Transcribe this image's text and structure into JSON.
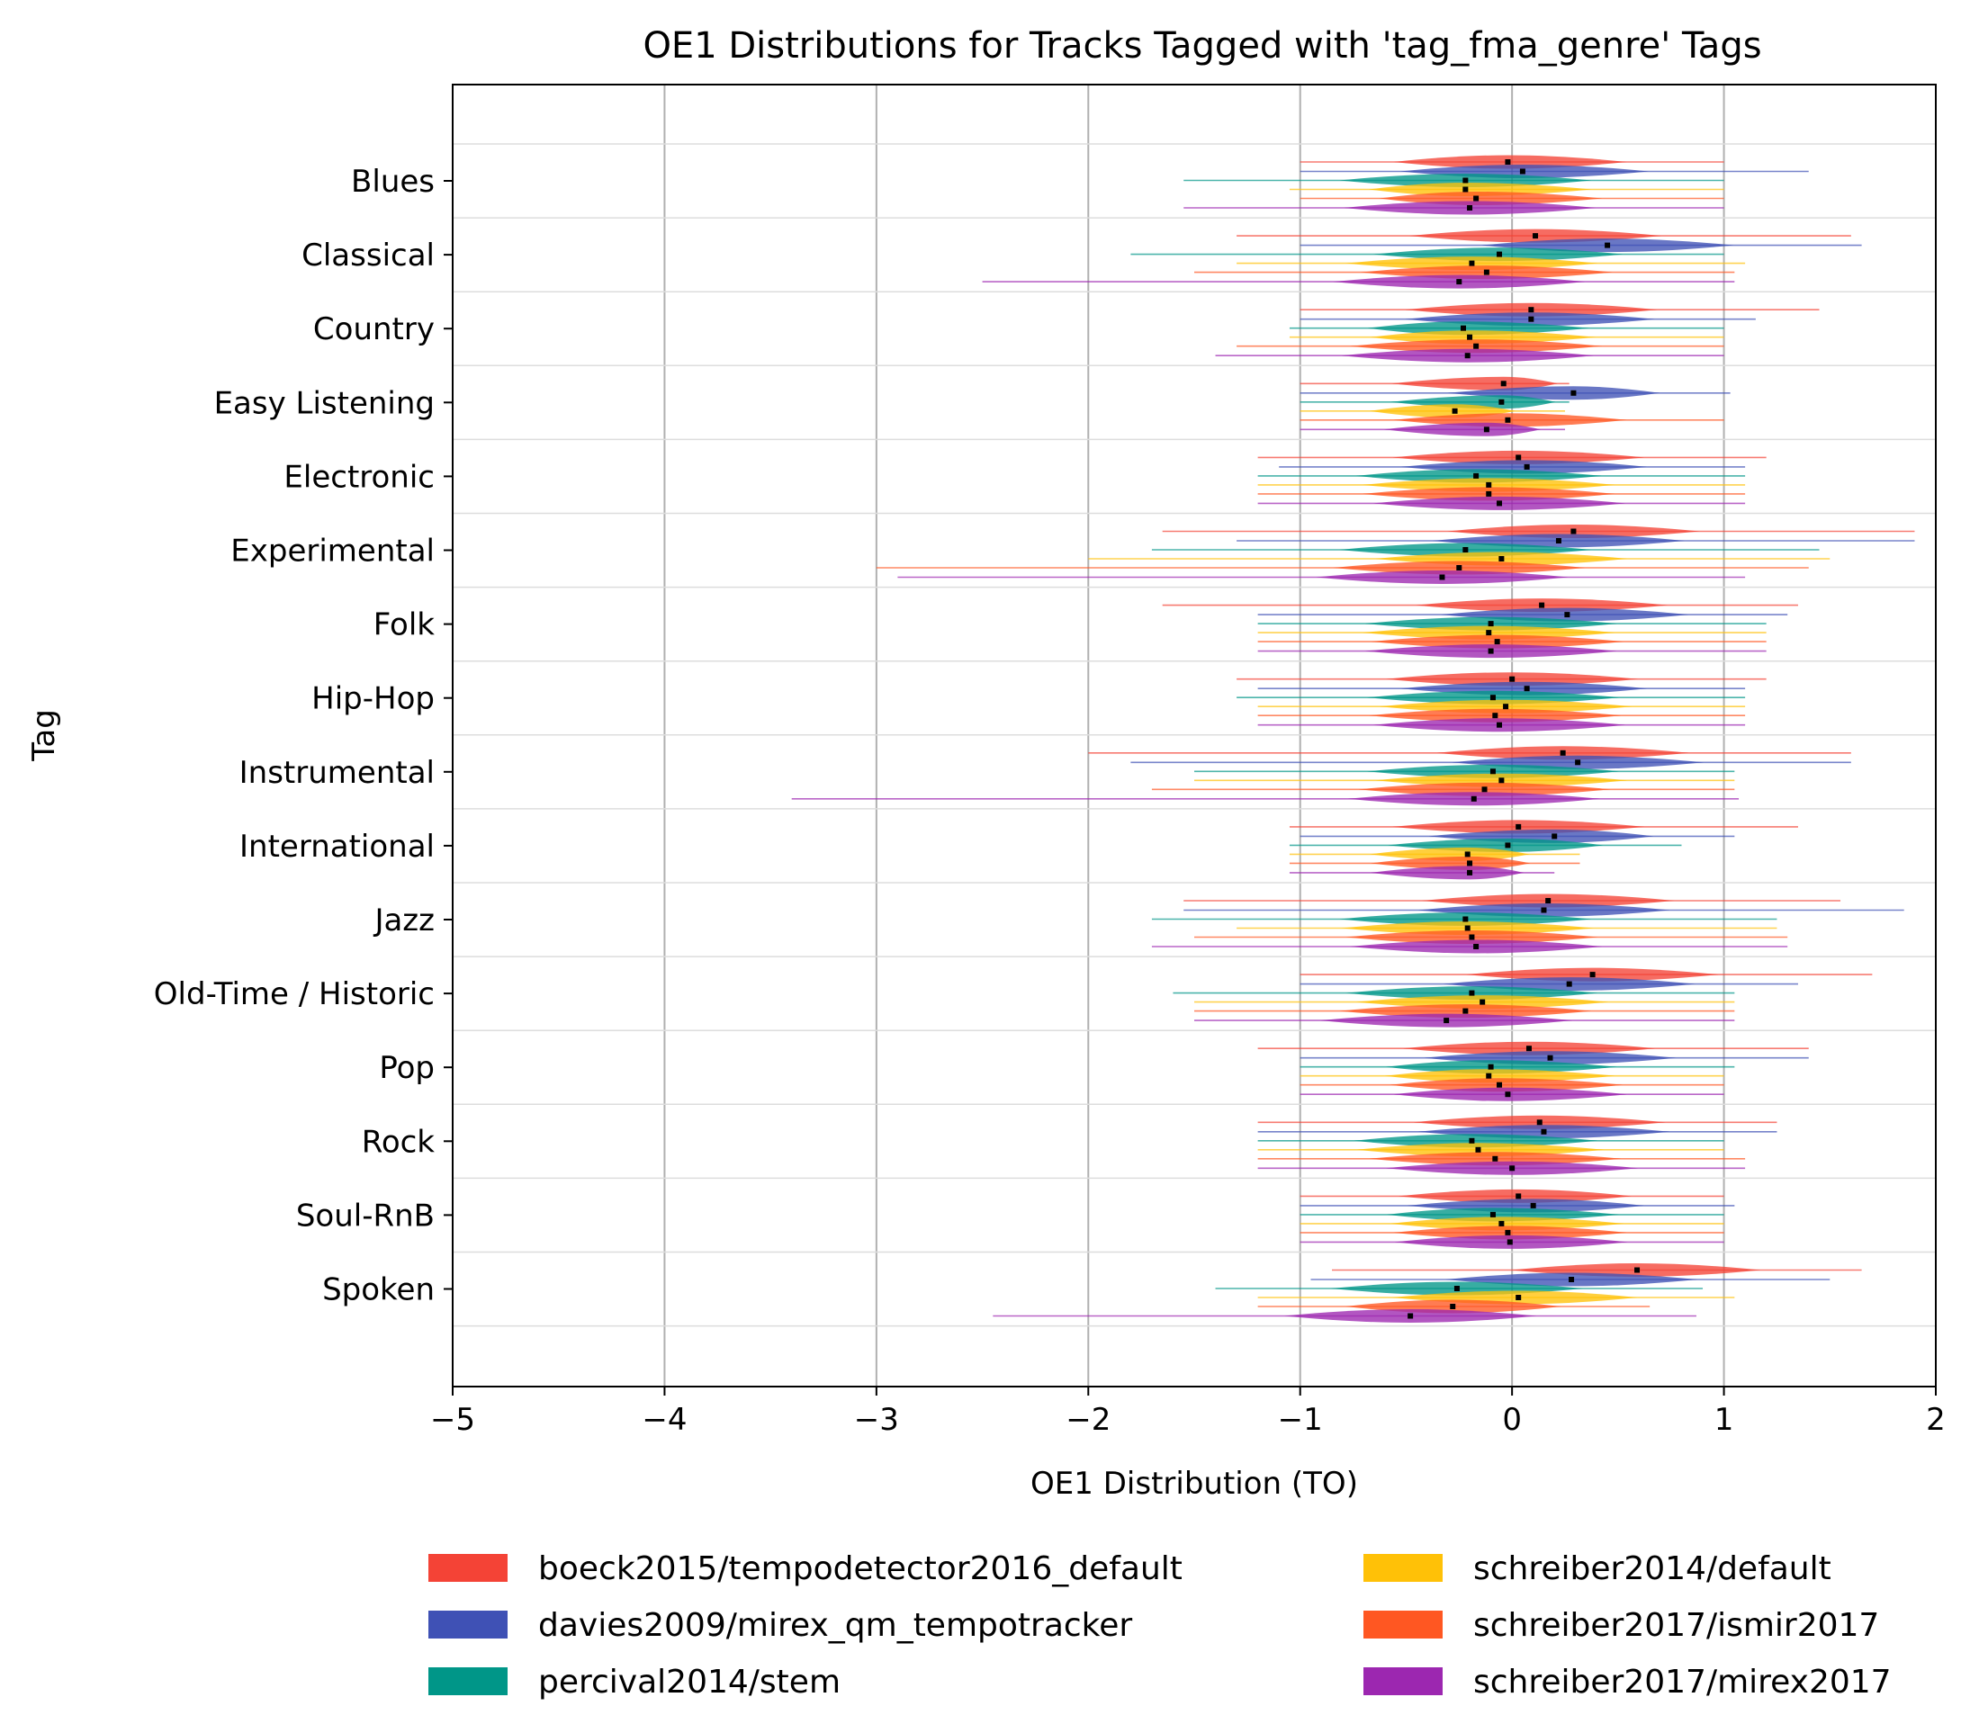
{
  "chart_data": {
    "type": "violin",
    "title": "OE1 Distributions for Tracks Tagged with 'tag_fma_genre' Tags",
    "xlabel": "OE1 Distribution (TO)",
    "ylabel": "Tag",
    "xlim": [
      -5,
      2
    ],
    "xticks": [
      -5,
      -4,
      -3,
      -2,
      -1,
      0,
      1,
      2
    ],
    "xtick_labels": [
      "−5",
      "−4",
      "−3",
      "−2",
      "−1",
      "0",
      "1",
      "2"
    ],
    "grid": "vertical",
    "legend_position": "bottom-center",
    "series": [
      {
        "name": "boeck2015/tempodetector2016_default",
        "color": "#f44336"
      },
      {
        "name": "davies2009/mirex_qm_tempotracker",
        "color": "#3f51b5"
      },
      {
        "name": "percival2014/stem",
        "color": "#009688"
      },
      {
        "name": "schreiber2014/default",
        "color": "#ffc107"
      },
      {
        "name": "schreiber2017/ismir2017",
        "color": "#ff5722"
      },
      {
        "name": "schreiber2017/mirex2017",
        "color": "#9c27b0"
      }
    ],
    "categories": [
      "Blues",
      "Classical",
      "Country",
      "Easy Listening",
      "Electronic",
      "Experimental",
      "Folk",
      "Hip-Hop",
      "Instrumental",
      "International",
      "Jazz",
      "Old-Time / Historic",
      "Pop",
      "Rock",
      "Soul-RnB",
      "Spoken"
    ],
    "medians": [
      [
        -0.02,
        0.05,
        -0.22,
        -0.22,
        -0.17,
        -0.2
      ],
      [
        0.11,
        0.45,
        -0.06,
        -0.19,
        -0.12,
        -0.25
      ],
      [
        0.09,
        0.09,
        -0.23,
        -0.2,
        -0.17,
        -0.21
      ],
      [
        -0.04,
        0.29,
        -0.05,
        -0.27,
        -0.02,
        -0.12
      ],
      [
        0.03,
        0.07,
        -0.17,
        -0.11,
        -0.11,
        -0.06
      ],
      [
        0.29,
        0.22,
        -0.22,
        -0.05,
        -0.25,
        -0.33
      ],
      [
        0.14,
        0.26,
        -0.1,
        -0.11,
        -0.07,
        -0.1
      ],
      [
        0.0,
        0.07,
        -0.09,
        -0.03,
        -0.08,
        -0.06
      ],
      [
        0.24,
        0.31,
        -0.09,
        -0.05,
        -0.13,
        -0.18
      ],
      [
        0.03,
        0.2,
        -0.02,
        -0.21,
        -0.2,
        -0.2
      ],
      [
        0.17,
        0.15,
        -0.22,
        -0.21,
        -0.19,
        -0.17
      ],
      [
        0.38,
        0.27,
        -0.19,
        -0.14,
        -0.22,
        -0.31
      ],
      [
        0.08,
        0.18,
        -0.1,
        -0.11,
        -0.06,
        -0.02
      ],
      [
        0.13,
        0.15,
        -0.19,
        -0.16,
        -0.08,
        0.0
      ],
      [
        0.03,
        0.1,
        -0.09,
        -0.05,
        -0.02,
        -0.01
      ],
      [
        0.59,
        0.28,
        -0.26,
        0.03,
        -0.28,
        -0.48
      ]
    ],
    "ranges": [
      [
        [
          -1.0,
          1.0
        ],
        [
          -1.0,
          1.4
        ],
        [
          -1.55,
          1.0
        ],
        [
          -1.05,
          1.0
        ],
        [
          -1.0,
          1.0
        ],
        [
          -1.55,
          1.0
        ]
      ],
      [
        [
          -1.3,
          1.6
        ],
        [
          -1.0,
          1.65
        ],
        [
          -1.8,
          1.0
        ],
        [
          -1.3,
          1.1
        ],
        [
          -1.5,
          1.05
        ],
        [
          -2.5,
          1.05
        ]
      ],
      [
        [
          -1.0,
          1.45
        ],
        [
          -1.0,
          1.15
        ],
        [
          -1.05,
          1.0
        ],
        [
          -1.05,
          1.0
        ],
        [
          -1.3,
          1.0
        ],
        [
          -1.4,
          1.0
        ]
      ],
      [
        [
          -1.0,
          0.27
        ],
        [
          -1.0,
          1.03
        ],
        [
          -1.0,
          0.27
        ],
        [
          -1.0,
          0.25
        ],
        [
          -1.0,
          1.0
        ],
        [
          -1.0,
          0.25
        ]
      ],
      [
        [
          -1.2,
          1.2
        ],
        [
          -1.1,
          1.1
        ],
        [
          -1.2,
          1.1
        ],
        [
          -1.2,
          1.1
        ],
        [
          -1.2,
          1.1
        ],
        [
          -1.2,
          1.1
        ]
      ],
      [
        [
          -1.65,
          1.9
        ],
        [
          -1.3,
          1.9
        ],
        [
          -1.7,
          1.45
        ],
        [
          -2.0,
          1.5
        ],
        [
          -3.0,
          1.4
        ],
        [
          -2.9,
          1.1
        ]
      ],
      [
        [
          -1.65,
          1.35
        ],
        [
          -1.2,
          1.3
        ],
        [
          -1.2,
          1.2
        ],
        [
          -1.2,
          1.2
        ],
        [
          -1.2,
          1.2
        ],
        [
          -1.2,
          1.2
        ]
      ],
      [
        [
          -1.3,
          1.2
        ],
        [
          -1.2,
          1.1
        ],
        [
          -1.3,
          1.1
        ],
        [
          -1.2,
          1.1
        ],
        [
          -1.2,
          1.1
        ],
        [
          -1.2,
          1.1
        ]
      ],
      [
        [
          -2.0,
          1.6
        ],
        [
          -1.8,
          1.6
        ],
        [
          -1.5,
          1.05
        ],
        [
          -1.5,
          1.05
        ],
        [
          -1.7,
          1.05
        ],
        [
          -3.4,
          1.07
        ]
      ],
      [
        [
          -1.05,
          1.35
        ],
        [
          -1.0,
          1.05
        ],
        [
          -1.05,
          0.8
        ],
        [
          -1.05,
          0.32
        ],
        [
          -1.05,
          0.32
        ],
        [
          -1.05,
          0.2
        ]
      ],
      [
        [
          -1.55,
          1.55
        ],
        [
          -1.55,
          1.85
        ],
        [
          -1.7,
          1.25
        ],
        [
          -1.3,
          1.25
        ],
        [
          -1.5,
          1.3
        ],
        [
          -1.7,
          1.3
        ]
      ],
      [
        [
          -1.0,
          1.7
        ],
        [
          -1.0,
          1.35
        ],
        [
          -1.6,
          1.05
        ],
        [
          -1.5,
          1.05
        ],
        [
          -1.5,
          1.05
        ],
        [
          -1.5,
          1.05
        ]
      ],
      [
        [
          -1.2,
          1.4
        ],
        [
          -1.0,
          1.4
        ],
        [
          -1.0,
          1.05
        ],
        [
          -1.0,
          1.0
        ],
        [
          -1.0,
          1.0
        ],
        [
          -1.0,
          1.0
        ]
      ],
      [
        [
          -1.2,
          1.25
        ],
        [
          -1.2,
          1.25
        ],
        [
          -1.2,
          1.0
        ],
        [
          -1.2,
          1.0
        ],
        [
          -1.2,
          1.1
        ],
        [
          -1.2,
          1.1
        ]
      ],
      [
        [
          -1.0,
          1.0
        ],
        [
          -1.0,
          1.05
        ],
        [
          -1.0,
          1.0
        ],
        [
          -1.0,
          1.0
        ],
        [
          -1.0,
          1.0
        ],
        [
          -1.0,
          1.0
        ]
      ],
      [
        [
          -0.85,
          1.65
        ],
        [
          -0.95,
          1.5
        ],
        [
          -1.4,
          0.9
        ],
        [
          -1.2,
          1.05
        ],
        [
          -1.2,
          0.65
        ],
        [
          -2.45,
          0.87
        ]
      ]
    ]
  }
}
